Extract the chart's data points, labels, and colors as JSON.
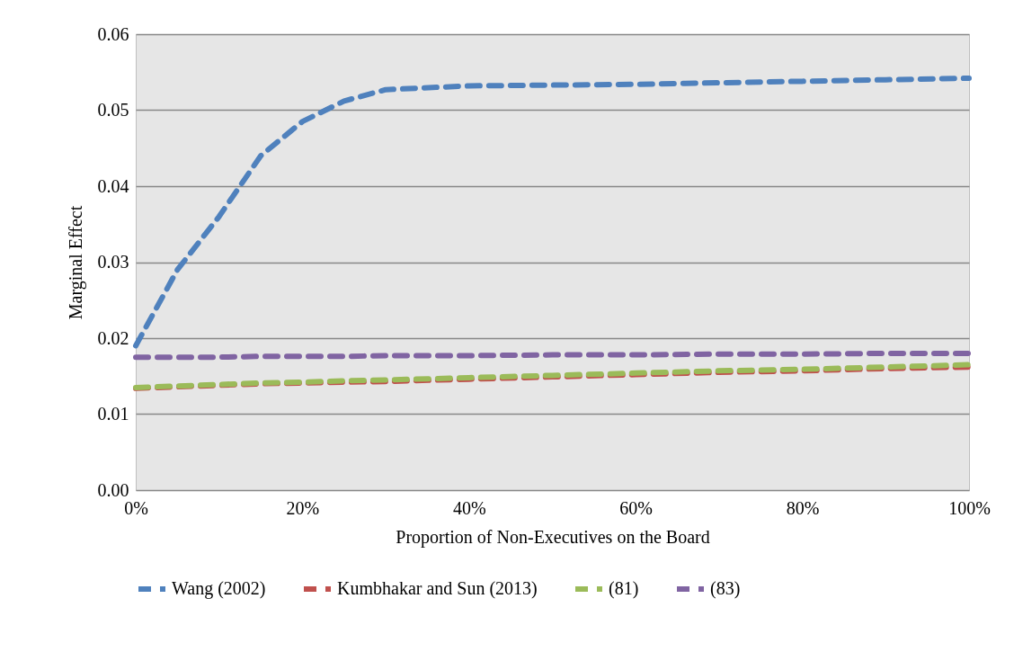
{
  "chart_data": {
    "type": "line",
    "xlabel": "Proportion of Non-Executives on the Board",
    "ylabel": "Marginal Effect",
    "x": [
      0,
      5,
      10,
      15,
      20,
      25,
      30,
      40,
      50,
      60,
      70,
      80,
      90,
      100
    ],
    "series": [
      {
        "name": "Wang (2002)",
        "color": "#4f81bd",
        "values": [
          0.019,
          0.029,
          0.036,
          0.044,
          0.0485,
          0.0512,
          0.0527,
          0.0532,
          0.0533,
          0.0534,
          0.0536,
          0.0538,
          0.054,
          0.0542
        ]
      },
      {
        "name": "Kumbhakar and Sun (2013)",
        "color": "#c0504d",
        "values": [
          0.0134,
          0.0136,
          0.0138,
          0.014,
          0.0141,
          0.0142,
          0.0143,
          0.0146,
          0.0149,
          0.0152,
          0.0155,
          0.0157,
          0.016,
          0.0162
        ]
      },
      {
        "name": "(81)",
        "color": "#9bbb59",
        "values": [
          0.0135,
          0.0137,
          0.0139,
          0.0141,
          0.0142,
          0.0144,
          0.0145,
          0.0148,
          0.0151,
          0.0154,
          0.0157,
          0.0159,
          0.0162,
          0.0165
        ]
      },
      {
        "name": "(83)",
        "color": "#8064a2",
        "values": [
          0.0175,
          0.0175,
          0.0175,
          0.0176,
          0.0176,
          0.0176,
          0.0177,
          0.0177,
          0.0178,
          0.0178,
          0.0179,
          0.0179,
          0.018,
          0.018
        ]
      }
    ],
    "xlim": [
      0,
      100
    ],
    "xticks": [
      {
        "value": 0,
        "label": "0%"
      },
      {
        "value": 20,
        "label": "20%"
      },
      {
        "value": 40,
        "label": "40%"
      },
      {
        "value": 60,
        "label": "60%"
      },
      {
        "value": 80,
        "label": "80%"
      },
      {
        "value": 100,
        "label": "100%"
      }
    ],
    "ylim": [
      0,
      0.06
    ],
    "yticks": [
      {
        "value": 0,
        "label": "0.00"
      },
      0.01,
      0.02,
      0.03,
      0.04,
      0.05,
      0.06
    ],
    "grid": "y",
    "legend": "bottom",
    "line_style": "dashed",
    "marker": "none"
  }
}
